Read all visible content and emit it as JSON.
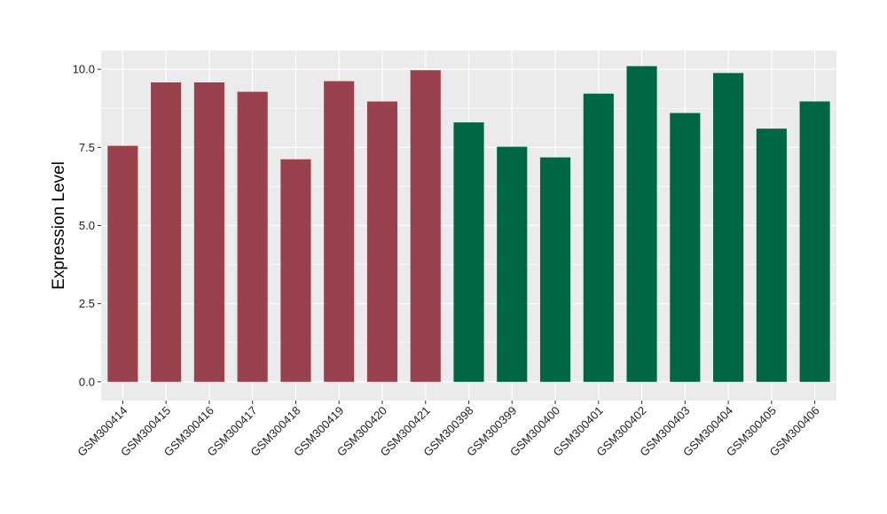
{
  "chart_data": {
    "type": "bar",
    "title": "",
    "xlabel": "",
    "ylabel": "Expression Level",
    "ylim": [
      -0.6,
      10.6
    ],
    "yticks": [
      0.0,
      2.5,
      5.0,
      7.5,
      10.0
    ],
    "ytick_labels": [
      "0.0",
      "2.5",
      "5.0",
      "7.5",
      "10.0"
    ],
    "grid": true,
    "legend": "none",
    "categories": [
      "GSM300414",
      "GSM300415",
      "GSM300416",
      "GSM300417",
      "GSM300418",
      "GSM300419",
      "GSM300420",
      "GSM300421",
      "GSM300398",
      "GSM300399",
      "GSM300400",
      "GSM300401",
      "GSM300402",
      "GSM300403",
      "GSM300404",
      "GSM300405",
      "GSM300406"
    ],
    "values": [
      7.55,
      9.58,
      9.58,
      9.28,
      7.12,
      9.62,
      8.97,
      9.97,
      8.3,
      7.52,
      7.18,
      9.22,
      10.1,
      8.6,
      9.88,
      8.1,
      8.97
    ],
    "bar_colors": [
      "#9a414e",
      "#9a414e",
      "#9a414e",
      "#9a414e",
      "#9a414e",
      "#9a414e",
      "#9a414e",
      "#9a414e",
      "#006644",
      "#006644",
      "#006644",
      "#006644",
      "#006644",
      "#006644",
      "#006644",
      "#006644",
      "#006644"
    ],
    "colors": {
      "panel_background": "#ebebeb",
      "grid": "#ffffff",
      "group_a": "#9a414e",
      "group_b": "#006644"
    }
  }
}
